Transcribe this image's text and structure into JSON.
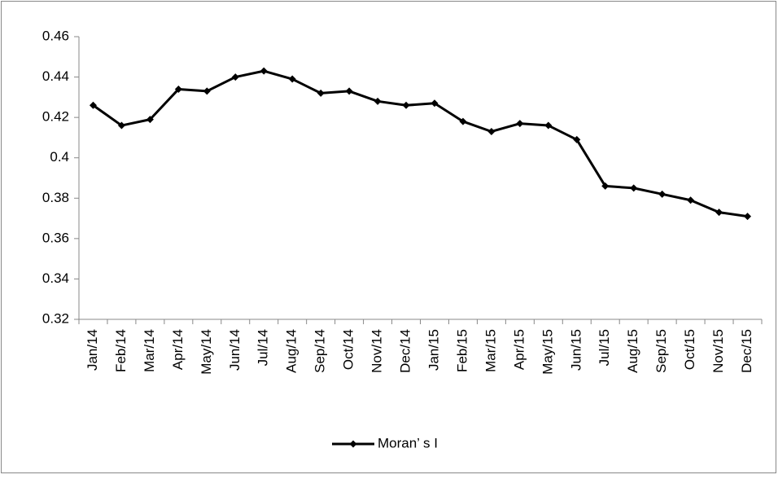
{
  "chart_data": {
    "type": "line",
    "categories": [
      "Jan/14",
      "Feb/14",
      "Mar/14",
      "Apr/14",
      "May/14",
      "Jun/14",
      "Jul/14",
      "Aug/14",
      "Sep/14",
      "Oct/14",
      "Nov/14",
      "Dec/14",
      "Jan/15",
      "Feb/15",
      "Mar/15",
      "Apr/15",
      "May/15",
      "Jun/15",
      "Jul/15",
      "Aug/15",
      "Sep/15",
      "Oct/15",
      "Nov/15",
      "Dec/15"
    ],
    "series": [
      {
        "name": "Moran’ s I",
        "color": "#000000",
        "values": [
          0.426,
          0.416,
          0.419,
          0.434,
          0.433,
          0.44,
          0.443,
          0.439,
          0.432,
          0.433,
          0.428,
          0.426,
          0.427,
          0.418,
          0.413,
          0.417,
          0.416,
          0.409,
          0.386,
          0.385,
          0.382,
          0.379,
          0.373,
          0.371
        ]
      }
    ],
    "ylim": [
      0.32,
      0.46
    ],
    "yticks": [
      0.32,
      0.34,
      0.36,
      0.38,
      0.4,
      0.42,
      0.44,
      0.46
    ],
    "grid": false,
    "legend": "bottom"
  }
}
